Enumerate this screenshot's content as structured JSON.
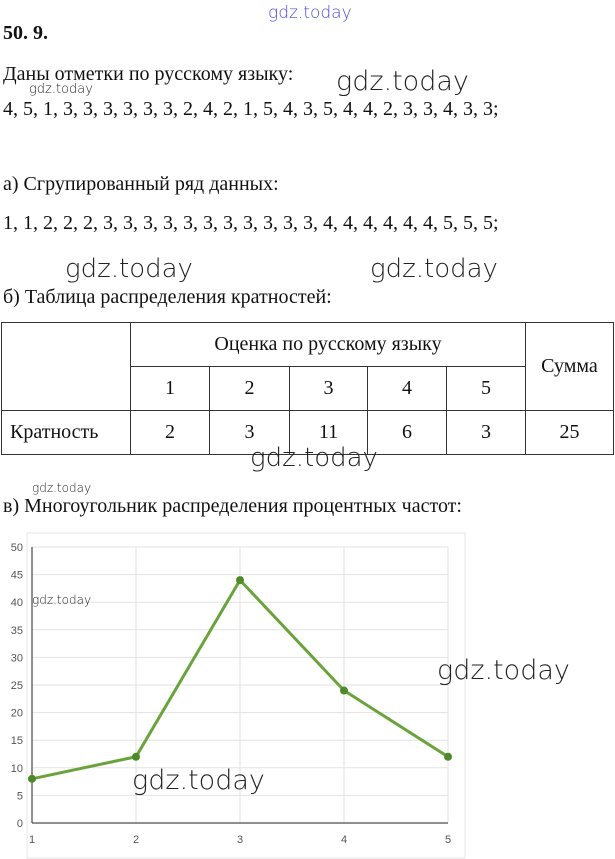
{
  "task_number": "50. 9.",
  "intro": "Даны отметки по русскому языку:",
  "raw_data": "4, 5, 1, 3, 3, 3, 3, 3, 3, 2, 4, 2, 1, 5, 4, 3, 5, 4, 4, 2, 3, 3, 4, 3, 3;",
  "part_a": {
    "label": "а) Сгрупированный ряд данных:",
    "series": "1, 1, 2, 2, 2, 3, 3, 3, 3, 3, 3, 3, 3, 3, 3, 3, 4, 4, 4, 4, 4, 4, 5, 5, 5;"
  },
  "part_b": {
    "label": "б) Таблица распределения кратностей:",
    "table": {
      "group_header": "Оценка по русскому языку",
      "sum_header": "Сумма",
      "grades": [
        "1",
        "2",
        "3",
        "4",
        "5"
      ],
      "row_label": "Кратность",
      "counts": [
        "2",
        "3",
        "11",
        "6",
        "3"
      ],
      "sum": "25"
    }
  },
  "part_c": {
    "label": "в) Многоугольник распределения процентных частот:"
  },
  "watermark": "gdz.today",
  "chart_data": {
    "type": "line",
    "x": [
      1,
      2,
      3,
      4,
      5
    ],
    "values": [
      8,
      12,
      44,
      24,
      12
    ],
    "xticks": [
      "1",
      "2",
      "3",
      "4",
      "5"
    ],
    "yticks": [
      "0",
      "5",
      "10",
      "15",
      "20",
      "25",
      "30",
      "35",
      "40",
      "45",
      "50"
    ],
    "ylim": [
      0,
      50
    ],
    "grid": true,
    "color": "#6aa33c",
    "marker_color": "#4f8a2a"
  }
}
